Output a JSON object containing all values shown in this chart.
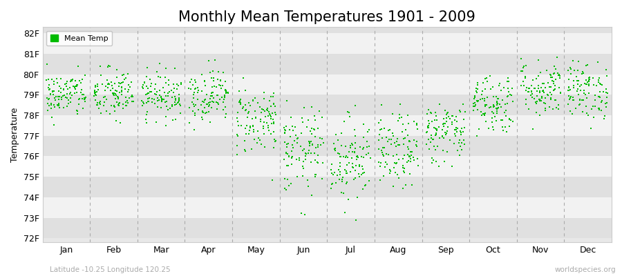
{
  "title": "Monthly Mean Temperatures 1901 - 2009",
  "ylabel": "Temperature",
  "xlabel_labels": [
    "Jan",
    "Feb",
    "Mar",
    "Apr",
    "May",
    "Jun",
    "Jul",
    "Aug",
    "Sep",
    "Oct",
    "Nov",
    "Dec"
  ],
  "ytick_labels": [
    "72F",
    "73F",
    "74F",
    "75F",
    "76F",
    "77F",
    "78F",
    "79F",
    "80F",
    "81F",
    "82F"
  ],
  "ytick_values": [
    72,
    73,
    74,
    75,
    76,
    77,
    78,
    79,
    80,
    81,
    82
  ],
  "ylim": [
    71.8,
    82.3
  ],
  "dot_color": "#00bb00",
  "dot_size": 3,
  "background_color": "#ffffff",
  "plot_bg_color": "#e8e8e8",
  "band_color_light": "#f2f2f2",
  "band_color_dark": "#e0e0e0",
  "dashed_line_color": "#aaaaaa",
  "legend_label": "Mean Temp",
  "subtitle_left": "Latitude -10.25 Longitude 120.25",
  "subtitle_right": "worldspecies.org",
  "title_fontsize": 15,
  "label_fontsize": 9,
  "tick_fontsize": 9,
  "monthly_means": [
    79.0,
    79.0,
    79.0,
    79.0,
    77.8,
    76.2,
    75.9,
    76.2,
    77.2,
    78.6,
    79.3,
    79.2
  ],
  "monthly_stds": [
    0.55,
    0.65,
    0.55,
    0.65,
    0.85,
    1.05,
    1.05,
    0.9,
    0.75,
    0.75,
    0.7,
    0.7
  ],
  "n_years": 109,
  "seed": 42
}
